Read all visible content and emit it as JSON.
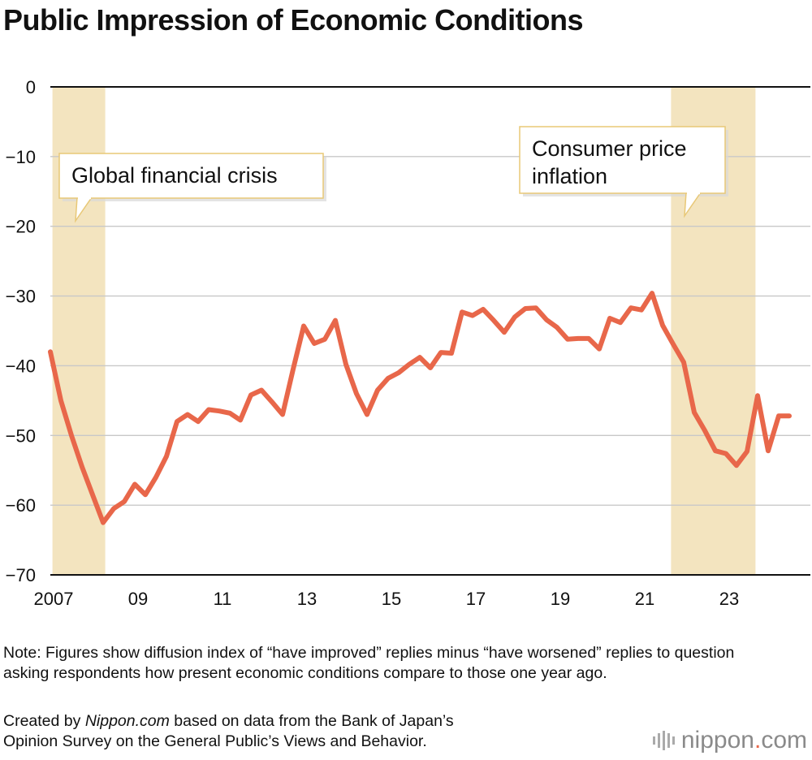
{
  "title": "Public Impression of Economic Conditions",
  "note": "Note: Figures show diffusion index of “have improved” replies minus “have worsened” replies to question asking respondents how present economic conditions compare to those one year ago.",
  "credit": {
    "prefix": "Created by ",
    "site": "Nippon.com",
    "suffix": " based on data from the Bank of Japan’s",
    "line2": "Opinion Survey on the General Public’s Views and Behavior."
  },
  "logo": {
    "name": "nippon",
    "dot": ".",
    "tld": "com",
    "icon": "nippon-bars-icon"
  },
  "colors": {
    "line": "#e8674a",
    "shade": "#f3e4bf",
    "grid": "#c8c8c8",
    "axis": "#111111",
    "callout_border": "#e8c877"
  },
  "chart_data": {
    "type": "line",
    "title": "Public Impression of Economic Conditions",
    "ylim": [
      -70,
      0
    ],
    "xlim": [
      2007.0,
      2025.0
    ],
    "yticks": [
      0,
      -10,
      -20,
      -30,
      -40,
      -50,
      -60,
      -70
    ],
    "ytick_labels": [
      "0",
      "−10",
      "−20",
      "−30",
      "−40",
      "−50",
      "−60",
      "−70"
    ],
    "xticks": [
      2007,
      2009,
      2011,
      2013,
      2015,
      2017,
      2019,
      2021,
      2023
    ],
    "xtick_labels": [
      "2007",
      "09",
      "11",
      "13",
      "15",
      "17",
      "19",
      "21",
      "23"
    ],
    "grid": true,
    "shaded_periods": [
      {
        "label": "Global financial crisis",
        "start": 2007.05,
        "end": 2008.3
      },
      {
        "label": "Consumer price inflation",
        "start": 2021.7,
        "end": 2023.7
      }
    ],
    "annotations": [
      {
        "lines": [
          "Global financial crisis"
        ],
        "x": 2007.5,
        "y": -12.5
      },
      {
        "lines": [
          "Consumer price",
          "inflation"
        ],
        "x": 2021.0,
        "y": -10.5
      }
    ],
    "series": [
      {
        "x": [
          2007.0,
          2007.25,
          2007.5,
          2007.75,
          2008.0,
          2008.25,
          2008.5,
          2008.75,
          2009.0,
          2009.25,
          2009.5,
          2009.75,
          2010.0,
          2010.25,
          2010.5,
          2010.75,
          2011.0,
          2011.25,
          2011.5,
          2011.75,
          2012.0,
          2012.25,
          2012.5,
          2012.75,
          2013.0,
          2013.25,
          2013.5,
          2013.75,
          2014.0,
          2014.25,
          2014.5,
          2014.75,
          2015.0,
          2015.25,
          2015.5,
          2015.75,
          2016.0,
          2016.25,
          2016.5,
          2016.75,
          2017.0,
          2017.25,
          2017.5,
          2017.75,
          2018.0,
          2018.25,
          2018.5,
          2018.75,
          2019.0,
          2019.25,
          2019.5,
          2019.75,
          2020.0,
          2020.25,
          2020.5,
          2020.75,
          2021.0,
          2021.25,
          2021.5,
          2021.75,
          2022.0,
          2022.25,
          2022.5,
          2022.75,
          2023.0,
          2023.25,
          2023.5,
          2023.75,
          2024.0,
          2024.25,
          2024.5
        ],
        "values": [
          -38.0,
          -45.0,
          -50.0,
          -54.5,
          -58.5,
          -62.5,
          -60.5,
          -59.5,
          -57.0,
          -58.5,
          -56.0,
          -53.0,
          -48.0,
          -47.0,
          -48.0,
          -46.3,
          -46.5,
          -46.8,
          -47.8,
          -44.2,
          -43.5,
          -45.2,
          -47.0,
          -40.5,
          -34.3,
          -36.8,
          -36.2,
          -33.5,
          -39.8,
          -44.0,
          -47.0,
          -43.5,
          -41.8,
          -41.0,
          -39.8,
          -38.8,
          -40.3,
          -38.1,
          -38.2,
          -32.3,
          -32.8,
          -31.9,
          -33.5,
          -35.2,
          -33.0,
          -31.8,
          -31.7,
          -33.4,
          -34.5,
          -36.2,
          -36.1,
          -36.1,
          -37.6,
          -33.2,
          -33.8,
          -31.7,
          -32.0,
          -29.6,
          -34.2,
          -36.9,
          -39.5,
          -46.7,
          -49.3,
          -52.2,
          -52.6,
          -54.3,
          -52.3,
          -44.3,
          -52.2,
          -47.2,
          -47.2
        ]
      }
    ]
  }
}
